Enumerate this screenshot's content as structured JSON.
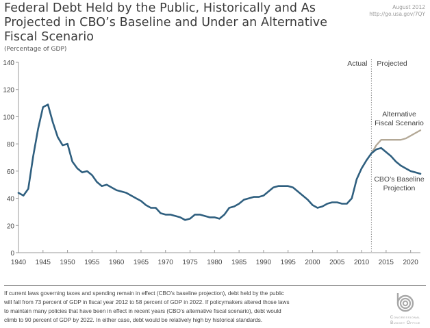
{
  "header": {
    "title": "Federal Debt Held by the Public, Historically and As Projected in CBO’s Baseline and Under an Alternative Fiscal Scenario",
    "subtitle": "(Percentage of GDP)",
    "date": "August 2012",
    "url": "http://go.usa.gov/7QY"
  },
  "chart_data": {
    "type": "line",
    "title": "Federal Debt Held by the Public, Historically and As Projected in CBO’s Baseline and Under an Alternative Fiscal Scenario",
    "ylabel": "Percentage of GDP",
    "xlabel": "",
    "xlim": [
      1940,
      2022
    ],
    "ylim": [
      0,
      140
    ],
    "yticks": [
      0,
      20,
      40,
      60,
      80,
      100,
      120,
      140
    ],
    "xticks": [
      1940,
      1945,
      1950,
      1955,
      1960,
      1965,
      1970,
      1975,
      1980,
      1985,
      1990,
      1995,
      2000,
      2005,
      2010,
      2015,
      2020
    ],
    "grid": false,
    "divider": {
      "year": 2012,
      "left_label": "Actual",
      "right_label": "Projected"
    },
    "series": [
      {
        "name": "Actual / CBO's Baseline Projection",
        "label": "CBO’s Baseline Projection",
        "color": "#2f5f7f",
        "x": [
          1940,
          1941,
          1942,
          1943,
          1944,
          1945,
          1946,
          1947,
          1948,
          1949,
          1950,
          1951,
          1952,
          1953,
          1954,
          1955,
          1956,
          1957,
          1958,
          1959,
          1960,
          1961,
          1962,
          1963,
          1964,
          1965,
          1966,
          1967,
          1968,
          1969,
          1970,
          1971,
          1972,
          1973,
          1974,
          1975,
          1976,
          1977,
          1978,
          1979,
          1980,
          1981,
          1982,
          1983,
          1984,
          1985,
          1986,
          1987,
          1988,
          1989,
          1990,
          1991,
          1992,
          1993,
          1994,
          1995,
          1996,
          1997,
          1998,
          1999,
          2000,
          2001,
          2002,
          2003,
          2004,
          2005,
          2006,
          2007,
          2008,
          2009,
          2010,
          2011,
          2012,
          2013,
          2014,
          2015,
          2016,
          2017,
          2018,
          2019,
          2020,
          2021,
          2022
        ],
        "values": [
          44,
          42,
          47,
          71,
          91,
          107,
          109,
          96,
          85,
          79,
          80,
          67,
          62,
          59,
          60,
          57,
          52,
          49,
          50,
          48,
          46,
          45,
          44,
          42,
          40,
          38,
          35,
          33,
          33,
          29,
          28,
          28,
          27,
          26,
          24,
          25,
          28,
          28,
          27,
          26,
          26,
          25,
          28,
          33,
          34,
          36,
          39,
          40,
          41,
          41,
          42,
          45,
          48,
          49,
          49,
          49,
          48,
          45,
          42,
          39,
          35,
          33,
          34,
          36,
          37,
          37,
          36,
          36,
          40,
          54,
          62,
          68,
          73,
          76,
          77,
          74,
          71,
          67,
          64,
          62,
          60,
          59,
          58
        ]
      },
      {
        "name": "Alternative Fiscal Scenario",
        "label": "Alternative Fiscal Scenario",
        "color": "#b3a896",
        "x": [
          2012,
          2013,
          2014,
          2015,
          2016,
          2017,
          2018,
          2019,
          2020,
          2021,
          2022
        ],
        "values": [
          73,
          79,
          83,
          83,
          83,
          83,
          83,
          84,
          86,
          88,
          90
        ]
      }
    ]
  },
  "footer": {
    "note": "If current laws governing taxes and spending remain in effect (CBO’s baseline projection), debt held by the public will fall from 73 percent of GDP in fiscal year 2012 to 58 percent of GDP in 2022. If policymakers altered those laws to maintain many policies that have been in effect in recent years (CBO’s alternative fiscal scenario), debt would climb to 90 percent of GDP by 2022. In either case, debt would be relatively high by historical standards.",
    "logo_line1": "Congressional",
    "logo_line2": "Budget Office"
  }
}
